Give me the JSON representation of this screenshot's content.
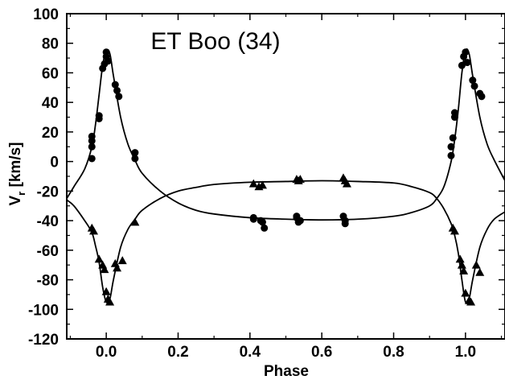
{
  "chart_data": {
    "type": "scatter",
    "title": "ET Boo (34)",
    "xlabel": "Phase",
    "ylabel": "V_r [km/s]",
    "ylabel_main": "V",
    "ylabel_sub": "r",
    "ylabel_unit": " [km/s]",
    "xlim": [
      -0.11,
      1.11
    ],
    "ylim": [
      -120,
      100
    ],
    "x_ticks": [
      0.0,
      0.2,
      0.4,
      0.6,
      0.8,
      1.0
    ],
    "x_tick_labels": [
      "0.0",
      "0.2",
      "0.4",
      "0.6",
      "0.8",
      "1.0"
    ],
    "y_ticks": [
      100,
      80,
      60,
      40,
      20,
      0,
      -20,
      -40,
      -60,
      -80,
      -100,
      -120
    ],
    "y_tick_labels": [
      "100",
      "80",
      "60",
      "40",
      "20",
      "0",
      "-20",
      "-40",
      "-60",
      "-80",
      "-100",
      "-120"
    ],
    "grid": false,
    "legend": "none",
    "series": [
      {
        "marker": "circle",
        "points": [
          [
            -0.04,
            10
          ],
          [
            -0.04,
            14
          ],
          [
            -0.04,
            17
          ],
          [
            -0.04,
            2
          ],
          [
            -0.02,
            31
          ],
          [
            -0.02,
            29
          ],
          [
            -0.01,
            63
          ],
          [
            -0.005,
            66
          ],
          [
            0.0,
            71
          ],
          [
            0.0,
            74
          ],
          [
            0.005,
            68
          ],
          [
            0.025,
            52
          ],
          [
            0.03,
            48
          ],
          [
            0.035,
            44
          ],
          [
            0.08,
            6
          ],
          [
            0.08,
            2
          ],
          [
            0.41,
            -38
          ],
          [
            0.41,
            -39
          ],
          [
            0.43,
            -40
          ],
          [
            0.435,
            -41
          ],
          [
            0.44,
            -45
          ],
          [
            0.53,
            -37
          ],
          [
            0.53,
            -38
          ],
          [
            0.54,
            -40
          ],
          [
            0.535,
            -41
          ],
          [
            0.66,
            -37
          ],
          [
            0.665,
            -40
          ],
          [
            0.665,
            -42
          ],
          [
            0.96,
            4
          ],
          [
            0.96,
            10
          ],
          [
            0.965,
            16
          ],
          [
            0.97,
            30
          ],
          [
            0.97,
            33
          ],
          [
            0.99,
            65
          ],
          [
            0.995,
            71
          ],
          [
            1.0,
            74
          ],
          [
            1.005,
            67
          ],
          [
            1.02,
            55
          ],
          [
            1.025,
            51
          ],
          [
            1.04,
            46
          ],
          [
            1.045,
            44
          ]
        ]
      },
      {
        "marker": "triangle",
        "points": [
          [
            -0.04,
            -45
          ],
          [
            -0.035,
            -47
          ],
          [
            -0.02,
            -66
          ],
          [
            -0.01,
            -70
          ],
          [
            -0.005,
            -73
          ],
          [
            0.0,
            -88
          ],
          [
            0.005,
            -93
          ],
          [
            0.01,
            -95
          ],
          [
            0.025,
            -69
          ],
          [
            0.03,
            -72
          ],
          [
            0.045,
            -67
          ],
          [
            0.08,
            -41
          ],
          [
            0.41,
            -15
          ],
          [
            0.425,
            -17
          ],
          [
            0.435,
            -16
          ],
          [
            0.53,
            -12
          ],
          [
            0.535,
            -13
          ],
          [
            0.54,
            -12
          ],
          [
            0.66,
            -11
          ],
          [
            0.665,
            -13
          ],
          [
            0.67,
            -15
          ],
          [
            0.965,
            -45
          ],
          [
            0.97,
            -47
          ],
          [
            0.985,
            -66
          ],
          [
            0.99,
            -70
          ],
          [
            0.995,
            -74
          ],
          [
            1.0,
            -89
          ],
          [
            1.01,
            -94
          ],
          [
            1.015,
            -95
          ],
          [
            1.03,
            -70
          ],
          [
            1.04,
            -75
          ]
        ]
      }
    ],
    "fit_curves": [
      {
        "points": [
          [
            -0.11,
            -25
          ],
          [
            -0.09,
            -17
          ],
          [
            -0.06,
            -5
          ],
          [
            -0.04,
            10
          ],
          [
            -0.03,
            25
          ],
          [
            -0.02,
            45
          ],
          [
            -0.01,
            65
          ],
          [
            0.0,
            75
          ],
          [
            0.01,
            73
          ],
          [
            0.02,
            58
          ],
          [
            0.04,
            30
          ],
          [
            0.06,
            12
          ],
          [
            0.08,
            1
          ],
          [
            0.1,
            -8
          ],
          [
            0.15,
            -20
          ],
          [
            0.2,
            -28
          ],
          [
            0.25,
            -33
          ],
          [
            0.3,
            -35.5
          ],
          [
            0.4,
            -38
          ],
          [
            0.5,
            -39
          ],
          [
            0.6,
            -39.5
          ],
          [
            0.7,
            -39
          ],
          [
            0.8,
            -37
          ],
          [
            0.85,
            -34.5
          ],
          [
            0.9,
            -30
          ],
          [
            0.92,
            -25
          ],
          [
            0.94,
            -17
          ],
          [
            0.96,
            0
          ],
          [
            0.97,
            15
          ],
          [
            0.98,
            35
          ],
          [
            0.99,
            60
          ],
          [
            1.0,
            75
          ],
          [
            1.01,
            73
          ],
          [
            1.02,
            58
          ],
          [
            1.04,
            30
          ],
          [
            1.06,
            12
          ],
          [
            1.08,
            1
          ],
          [
            1.11,
            -13
          ]
        ]
      },
      {
        "points": [
          [
            -0.11,
            -26
          ],
          [
            -0.09,
            -30
          ],
          [
            -0.06,
            -40
          ],
          [
            -0.04,
            -48
          ],
          [
            -0.03,
            -57
          ],
          [
            -0.02,
            -68
          ],
          [
            -0.01,
            -85
          ],
          [
            0.0,
            -95
          ],
          [
            0.01,
            -93
          ],
          [
            0.02,
            -80
          ],
          [
            0.04,
            -58
          ],
          [
            0.06,
            -46
          ],
          [
            0.08,
            -39
          ],
          [
            0.1,
            -33
          ],
          [
            0.15,
            -25
          ],
          [
            0.2,
            -20
          ],
          [
            0.25,
            -17.5
          ],
          [
            0.3,
            -15.5
          ],
          [
            0.4,
            -14
          ],
          [
            0.5,
            -13.5
          ],
          [
            0.6,
            -13
          ],
          [
            0.7,
            -13.5
          ],
          [
            0.8,
            -14.5
          ],
          [
            0.85,
            -17
          ],
          [
            0.9,
            -21
          ],
          [
            0.92,
            -25
          ],
          [
            0.94,
            -32
          ],
          [
            0.96,
            -42
          ],
          [
            0.97,
            -50
          ],
          [
            0.98,
            -62
          ],
          [
            0.99,
            -80
          ],
          [
            1.0,
            -95
          ],
          [
            1.01,
            -93
          ],
          [
            1.02,
            -80
          ],
          [
            1.04,
            -58
          ],
          [
            1.06,
            -46
          ],
          [
            1.08,
            -39
          ],
          [
            1.11,
            -34
          ]
        ]
      }
    ]
  }
}
